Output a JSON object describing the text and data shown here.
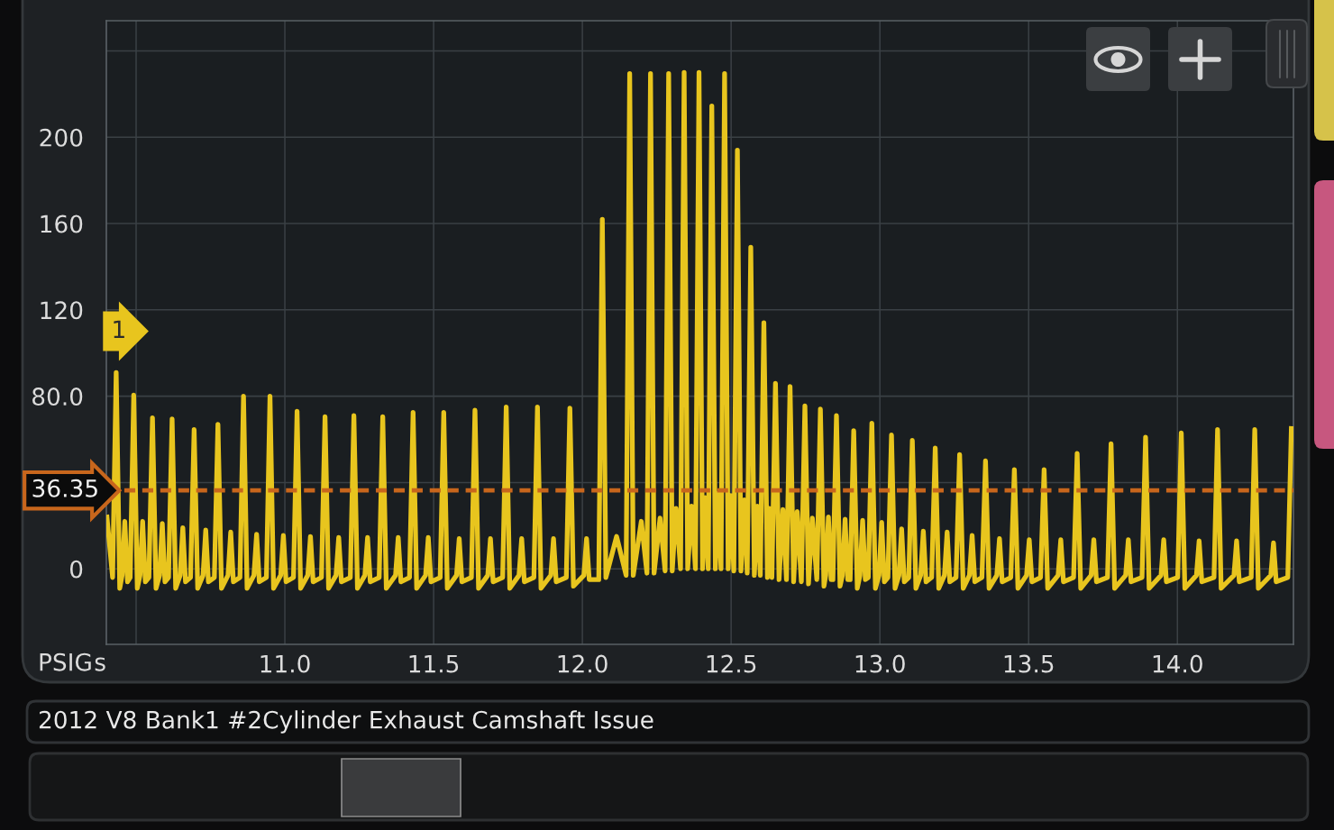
{
  "chart_data": {
    "type": "line",
    "title": "2012 V8 Bank1 #2Cylinder Exhaust Camshaft Issue",
    "xlabel": "s",
    "ylabel": "PSIG",
    "color": "#e8c51e",
    "line_style": "solid",
    "grid": true,
    "xlim": [
      10.4,
      14.39
    ],
    "ylim": [
      -35,
      254
    ],
    "xticks": [
      {
        "value": 10.5,
        "label": null
      },
      {
        "value": 11,
        "label": "11.0"
      },
      {
        "value": 11.5,
        "label": "11.5"
      },
      {
        "value": 12,
        "label": "12.0"
      },
      {
        "value": 12.5,
        "label": "12.5"
      },
      {
        "value": 13,
        "label": "13.0"
      },
      {
        "value": 13.5,
        "label": "13.5"
      },
      {
        "value": 14,
        "label": "14.0"
      }
    ],
    "yticks": [
      0,
      {
        "value": 40,
        "label": null
      },
      {
        "value": 80,
        "label": "80.0"
      },
      120,
      160,
      200,
      {
        "value": 240,
        "label": null
      }
    ],
    "ref_lines": [
      {
        "axis": "y",
        "value": 36.35,
        "label": "36.35",
        "color": "#c8661c",
        "line_style": "dashed"
      }
    ],
    "annotations": [
      "1"
    ],
    "x": [
      10.402,
      10.421,
      10.433,
      10.445,
      10.453,
      10.462,
      10.471,
      10.48,
      10.492,
      10.504,
      10.513,
      10.522,
      10.531,
      10.543,
      10.555,
      10.567,
      10.579,
      10.588,
      10.597,
      10.609,
      10.621,
      10.633,
      10.648,
      10.657,
      10.666,
      10.683,
      10.695,
      10.707,
      10.725,
      10.734,
      10.743,
      10.763,
      10.775,
      10.787,
      10.809,
      10.818,
      10.827,
      10.849,
      10.861,
      10.873,
      10.896,
      10.905,
      10.914,
      10.938,
      10.95,
      10.962,
      10.986,
      10.995,
      11.004,
      11.029,
      11.041,
      11.053,
      11.077,
      11.086,
      11.095,
      11.123,
      11.135,
      11.147,
      11.172,
      11.181,
      11.19,
      11.22,
      11.232,
      11.244,
      11.269,
      11.278,
      11.287,
      11.317,
      11.329,
      11.341,
      11.372,
      11.381,
      11.39,
      11.419,
      11.431,
      11.443,
      11.473,
      11.482,
      11.491,
      11.522,
      11.534,
      11.546,
      11.577,
      11.586,
      11.595,
      11.627,
      11.639,
      11.651,
      11.682,
      11.691,
      11.7,
      11.732,
      11.744,
      11.756,
      11.787,
      11.796,
      11.805,
      11.837,
      11.849,
      11.861,
      11.894,
      11.903,
      11.912,
      11.946,
      11.958,
      11.97,
      12.005,
      12.014,
      12.023,
      12.055,
      12.067,
      12.079,
      12.115,
      12.147,
      12.159,
      12.171,
      12.198,
      12.217,
      12.229,
      12.241,
      12.261,
      12.278,
      12.29,
      12.302,
      12.315,
      12.33,
      12.342,
      12.354,
      12.367,
      12.38,
      12.392,
      12.404,
      12.413,
      12.423,
      12.435,
      12.447,
      12.456,
      12.466,
      12.478,
      12.49,
      12.499,
      12.509,
      12.521,
      12.533,
      12.544,
      12.554,
      12.566,
      12.578,
      12.588,
      12.598,
      12.61,
      12.622,
      12.629,
      12.637,
      12.649,
      12.661,
      12.674,
      12.686,
      12.698,
      12.71,
      12.722,
      12.736,
      12.748,
      12.76,
      12.773,
      12.788,
      12.8,
      12.812,
      12.818,
      12.827,
      12.836,
      12.842,
      12.854,
      12.866,
      12.874,
      12.883,
      12.892,
      12.9,
      12.912,
      12.924,
      12.933,
      12.942,
      12.951,
      12.961,
      12.973,
      12.985,
      12.997,
      13.006,
      13.015,
      13.027,
      13.039,
      13.051,
      13.064,
      13.073,
      13.082,
      13.097,
      13.109,
      13.121,
      13.137,
      13.146,
      13.155,
      13.174,
      13.186,
      13.198,
      13.217,
      13.226,
      13.235,
      13.256,
      13.268,
      13.28,
      13.301,
      13.31,
      13.319,
      13.343,
      13.355,
      13.367,
      13.393,
      13.402,
      13.411,
      13.44,
      13.452,
      13.464,
      13.493,
      13.502,
      13.511,
      13.54,
      13.552,
      13.564,
      13.599,
      13.608,
      13.617,
      13.651,
      13.663,
      13.675,
      13.71,
      13.719,
      13.728,
      13.765,
      13.777,
      13.789,
      13.826,
      13.835,
      13.844,
      13.881,
      13.893,
      13.905,
      13.945,
      13.954,
      13.963,
      14.001,
      14.013,
      14.025,
      14.064,
      14.073,
      14.082,
      14.123,
      14.135,
      14.147,
      14.19,
      14.199,
      14.208,
      14.248,
      14.26,
      14.272,
      14.314,
      14.323,
      14.332,
      14.371,
      14.383
    ],
    "values": [
      24,
      -4,
      91,
      -9,
      -3,
      22,
      -6,
      -4,
      80.5,
      -9,
      -3,
      22,
      -6,
      -4,
      70,
      -9,
      -3,
      21,
      -6,
      -4,
      69.5,
      -9,
      -3,
      19,
      -6,
      -4,
      64.5,
      -9,
      -3,
      18,
      -6,
      -4,
      67,
      -9,
      -3,
      17,
      -6,
      -4,
      80,
      -9,
      -3,
      16,
      -6,
      -4,
      80,
      -9,
      -3,
      15.5,
      -6,
      -4,
      73,
      -9,
      -3,
      15,
      -6,
      -4,
      70.5,
      -9,
      -3,
      14.5,
      -6,
      -4,
      71,
      -9,
      -3,
      14.5,
      -6,
      -4,
      70.5,
      -9,
      -3,
      14.5,
      -6,
      -4,
      72.5,
      -9,
      -3,
      14.5,
      -6,
      -4,
      72.5,
      -9,
      -3,
      14,
      -6,
      -4,
      73.5,
      -9,
      -3,
      14,
      -6,
      -4,
      75,
      -9,
      -3,
      14,
      -6,
      -4,
      75,
      -9,
      -3,
      14,
      -6,
      -4,
      74.5,
      -8,
      -3,
      14,
      -5,
      -5,
      162,
      -4,
      15,
      -3,
      229.5,
      -3,
      22,
      -2,
      229.5,
      -2,
      23.5,
      -1,
      229.5,
      -1,
      28,
      0,
      230,
      0,
      29,
      0,
      230,
      0,
      33,
      0,
      214.5,
      0,
      35,
      0,
      229.5,
      0,
      34,
      -1,
      194,
      -1,
      32,
      -2,
      149,
      -3,
      29,
      -3,
      114,
      -4,
      28,
      -4,
      86,
      -5,
      27.5,
      -5,
      84.5,
      -6,
      26.5,
      -6,
      75.5,
      -7,
      23.5,
      -5,
      74,
      -8,
      -3,
      24,
      -5,
      -5,
      71,
      -8,
      -3,
      23,
      -5,
      -5,
      64,
      -9,
      -3,
      22.5,
      -5,
      -4,
      67.5,
      -9,
      -3,
      21.5,
      -6,
      -4,
      62,
      -9,
      -3,
      18.5,
      -6,
      -4,
      59.5,
      -9,
      -3,
      17.5,
      -6,
      -4,
      56,
      -9,
      -3,
      17,
      -6,
      -4,
      53,
      -9,
      -3,
      15.5,
      -6,
      -4,
      50,
      -9,
      -3,
      14,
      -6,
      -4,
      46,
      -9,
      -3,
      13.5,
      -6,
      -4,
      46,
      -9,
      -3,
      13.5,
      -6,
      -4,
      53.5,
      -9,
      -3,
      13.5,
      -6,
      -4,
      58,
      -9,
      -3,
      13.5,
      -6,
      -4,
      61,
      -9,
      -3,
      13.5,
      -6,
      -4,
      63,
      -9,
      -3,
      13,
      -6,
      -4,
      64.5,
      -9,
      -3,
      13,
      -6,
      -4,
      64.5,
      -9,
      -3,
      12,
      -6,
      -4,
      65
    ]
  }
}
